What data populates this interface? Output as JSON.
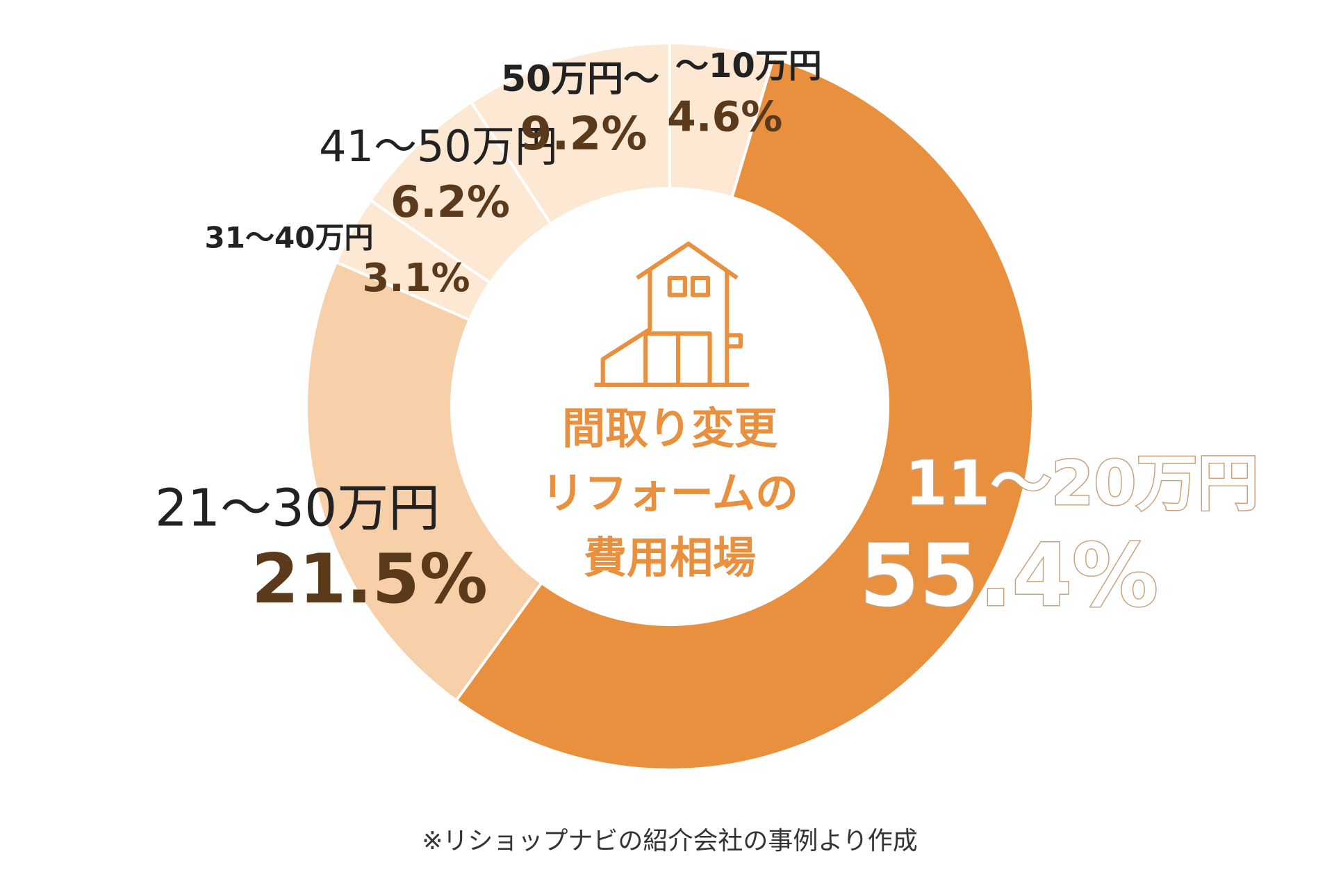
{
  "chart_data": {
    "type": "donut",
    "categories": [
      "～10万円",
      "11～20万円",
      "21～30万円",
      "31～40万円",
      "41～50万円",
      "50万円～"
    ],
    "values": [
      4.6,
      55.4,
      21.5,
      3.1,
      6.2,
      9.2
    ],
    "value_labels": [
      "4.6%",
      "55.4%",
      "21.5%",
      "3.1%",
      "6.2%",
      "9.2%"
    ],
    "colors": [
      "#fde8d4",
      "#e8903e",
      "#f7cfa8",
      "#fde8d4",
      "#fde8d4",
      "#fde8d4"
    ],
    "center_text": [
      "間取り変更",
      "リフォームの",
      "費用相場"
    ],
    "note": "※リショップナビの紹介会社の事例より作成"
  }
}
